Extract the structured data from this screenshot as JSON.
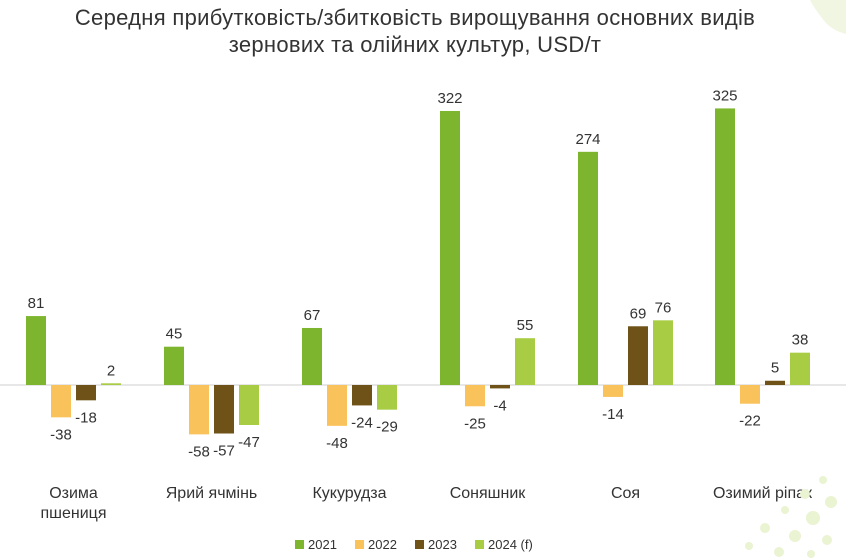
{
  "chart_data": {
    "type": "bar",
    "title_lines": [
      "Середня прибутковість/збитковість вирощування основних видів",
      "зернових та олійних культур, USD/т"
    ],
    "categories": [
      [
        "Озима",
        "пшениця"
      ],
      [
        "Ярий ячмінь"
      ],
      [
        "Кукурудза"
      ],
      [
        "Соняшник"
      ],
      [
        "Соя"
      ],
      [
        "Озимий ріпак"
      ]
    ],
    "series": [
      {
        "name": "2021",
        "color": "#7db52e",
        "values": [
          81,
          45,
          67,
          322,
          274,
          325
        ]
      },
      {
        "name": "2022",
        "color": "#f9c25a",
        "values": [
          -38,
          -58,
          -48,
          -25,
          -14,
          -22
        ]
      },
      {
        "name": "2023",
        "color": "#6f5217",
        "values": [
          -18,
          -57,
          -24,
          -4,
          69,
          5
        ]
      },
      {
        "name": "2024 (f)",
        "color": "#a8cd45",
        "values": [
          2,
          -47,
          -29,
          55,
          76,
          38
        ]
      }
    ],
    "value_labels": [
      [
        "81",
        "45",
        "67",
        "322",
        "274",
        "325"
      ],
      [
        "-38",
        "-58",
        "-48",
        "-25",
        "-14",
        "-22"
      ],
      [
        "-18",
        "-57",
        "-24",
        "-4",
        "69",
        "5"
      ],
      [
        "2",
        "-47",
        "-29",
        "55",
        "76",
        "38"
      ]
    ],
    "grid": false,
    "legend_position": "bottom",
    "zero_line_color": "#cfcfcf"
  }
}
